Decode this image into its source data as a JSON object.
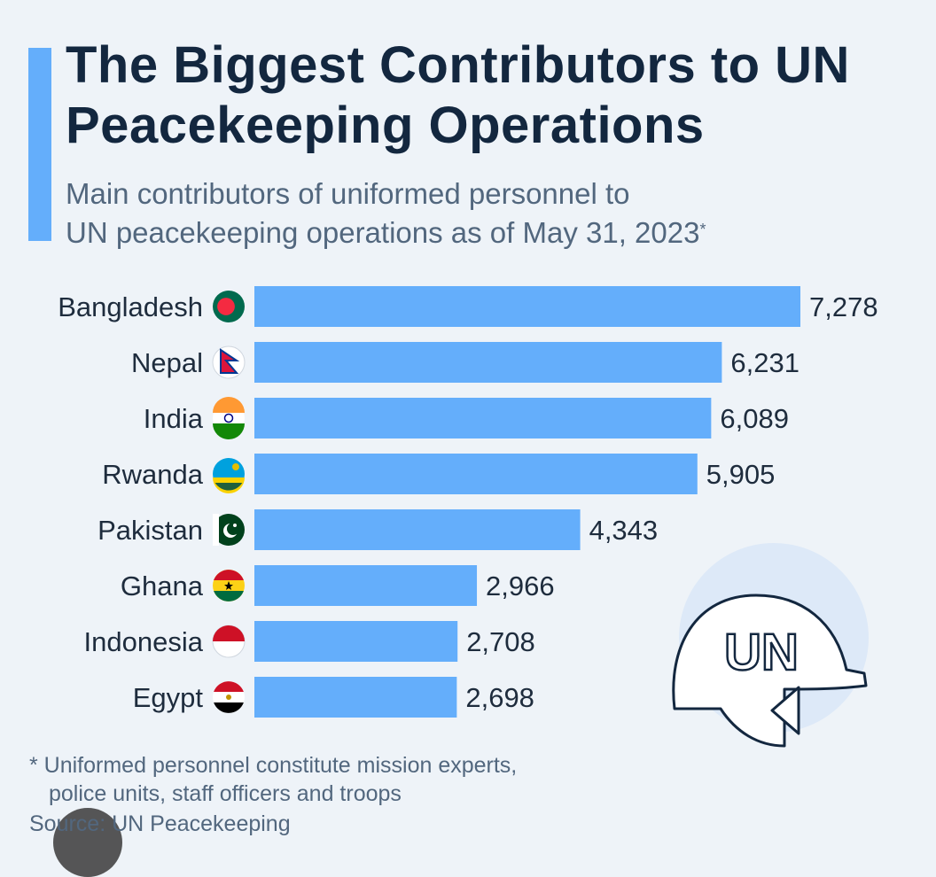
{
  "title": "The Biggest Contributors to UN Peacekeeping Operations",
  "subtitle_line1": "Main contributors of uniformed personnel to",
  "subtitle_line2": "UN peacekeeping operations as of May 31, 2023",
  "subtitle_mark": "*",
  "footnote_line1": "* Uniformed personnel constitute mission experts,",
  "footnote_line2": "police units, staff officers and troops",
  "source": "Source: UN Peacekeeping",
  "helmet_text": "UN",
  "colors": {
    "bar": "#64aefb",
    "title": "#13273f",
    "text": "#1e2c3d",
    "muted": "#52677e",
    "background": "#eef3f8"
  },
  "chart_data": {
    "type": "bar",
    "orientation": "horizontal",
    "title": "The Biggest Contributors to UN Peacekeeping Operations",
    "categories": [
      "Bangladesh",
      "Nepal",
      "India",
      "Rwanda",
      "Pakistan",
      "Ghana",
      "Indonesia",
      "Egypt"
    ],
    "values": [
      7278,
      6231,
      6089,
      5905,
      4343,
      2966,
      2708,
      2698
    ],
    "value_labels": [
      "7,278",
      "6,231",
      "6,089",
      "5,905",
      "4,343",
      "2,966",
      "2,708",
      "2,698"
    ],
    "flag_icons": [
      "bangladesh-flag-icon",
      "nepal-flag-icon",
      "india-flag-icon",
      "rwanda-flag-icon",
      "pakistan-flag-icon",
      "ghana-flag-icon",
      "indonesia-flag-icon",
      "egypt-flag-icon"
    ],
    "xlabel": "",
    "ylabel": "",
    "xlim": [
      0,
      7278
    ],
    "grid": false,
    "legend": "none"
  }
}
